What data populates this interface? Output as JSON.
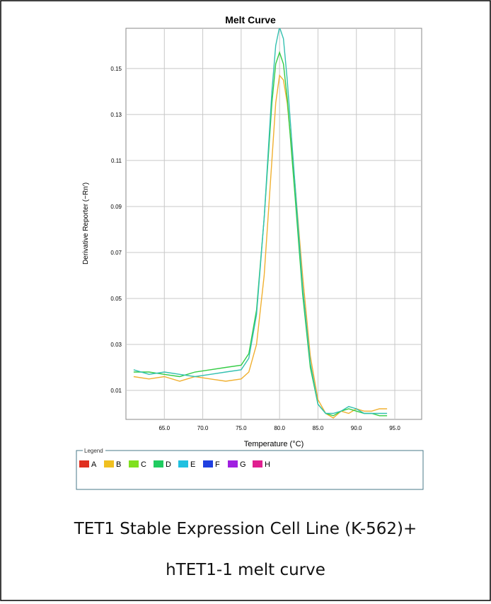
{
  "chart_data": {
    "type": "line",
    "title": "Melt Curve",
    "x_label": "Temperature (°C)",
    "y_label": "Derivative Reporter (−Rn′)",
    "x": [
      61,
      63,
      65,
      67,
      69,
      71,
      73,
      75,
      76,
      77,
      78,
      79,
      79.5,
      80,
      80.5,
      81,
      82,
      83,
      84,
      85,
      86,
      87,
      88,
      89,
      90,
      91,
      92,
      93,
      94
    ],
    "series": [
      {
        "name": "B",
        "color": "#f0b030",
        "values": [
          0.016,
          0.015,
          0.016,
          0.014,
          0.016,
          0.015,
          0.014,
          0.015,
          0.018,
          0.03,
          0.06,
          0.11,
          0.135,
          0.147,
          0.145,
          0.135,
          0.1,
          0.06,
          0.025,
          0.006,
          0.0,
          -0.002,
          0.001,
          0.0,
          0.002,
          0.001,
          0.001,
          0.002,
          0.002
        ]
      },
      {
        "name": "D",
        "color": "#33cc44",
        "values": [
          0.018,
          0.018,
          0.017,
          0.016,
          0.018,
          0.019,
          0.02,
          0.021,
          0.026,
          0.045,
          0.085,
          0.135,
          0.152,
          0.157,
          0.152,
          0.137,
          0.095,
          0.052,
          0.02,
          0.004,
          0.0,
          -0.001,
          0.001,
          0.002,
          0.001,
          0.0,
          0.0,
          -0.001,
          -0.001
        ]
      },
      {
        "name": "E",
        "color": "#33c0b0",
        "values": [
          0.019,
          0.017,
          0.018,
          0.017,
          0.016,
          0.017,
          0.018,
          0.019,
          0.024,
          0.043,
          0.085,
          0.14,
          0.16,
          0.168,
          0.163,
          0.145,
          0.1,
          0.055,
          0.022,
          0.004,
          0.0,
          0.0,
          0.001,
          0.003,
          0.002,
          0.0,
          0.0,
          0.0,
          0.0
        ]
      }
    ],
    "xlim": [
      60,
      98.5
    ],
    "ylim": [
      -0.0026,
      0.1675
    ],
    "xticks": [
      {
        "value": 65,
        "label": "65.0"
      },
      {
        "value": 70,
        "label": "70.0"
      },
      {
        "value": 75,
        "label": "75.0"
      },
      {
        "value": 80,
        "label": "80.0"
      },
      {
        "value": 85,
        "label": "85.0"
      },
      {
        "value": 90,
        "label": "90.0"
      },
      {
        "value": 95,
        "label": "95.0"
      }
    ],
    "yticks": [
      0.01,
      0.03,
      0.05,
      0.07,
      0.09,
      0.11,
      0.13,
      0.15
    ],
    "grid": true,
    "legend_title": "Legend",
    "legend": [
      {
        "name": "A",
        "color": "#e03020"
      },
      {
        "name": "B",
        "color": "#f0c020"
      },
      {
        "name": "C",
        "color": "#80e020"
      },
      {
        "name": "D",
        "color": "#20cc60"
      },
      {
        "name": "E",
        "color": "#20c0e0"
      },
      {
        "name": "F",
        "color": "#2040e0"
      },
      {
        "name": "G",
        "color": "#a020e0"
      },
      {
        "name": "H",
        "color": "#e02090"
      }
    ]
  },
  "caption": [
    "TET1 Stable Expression Cell Line (K-562)+",
    "hTET1-1 melt curve"
  ]
}
